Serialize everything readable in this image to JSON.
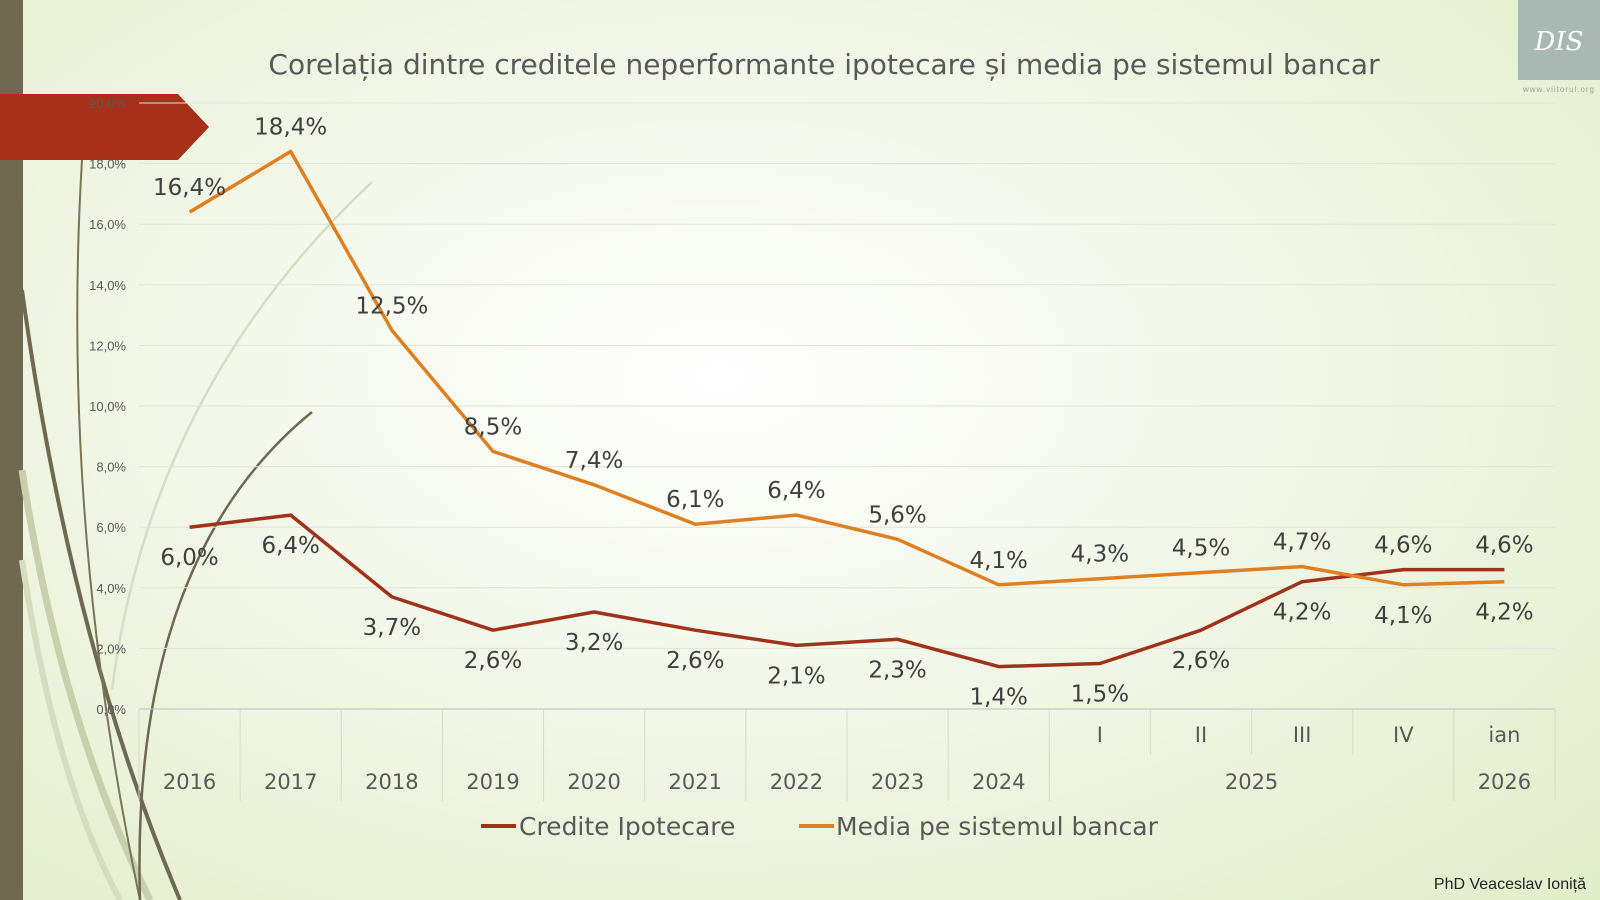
{
  "slide": {
    "credit": "PhD Veaceslav Ioniță",
    "logo": {
      "text": "DIS",
      "url": "www.viitorul.org"
    }
  },
  "colors": {
    "credite": "#a1321a",
    "media": "#e07f20",
    "sidebar": "#6e6950",
    "arrow": "#a6301a"
  },
  "chart_data": {
    "type": "line",
    "title": "Corelația dintre creditele neperformante ipotecare și media pe sistemul bancar",
    "categories": [
      "2016",
      "2017",
      "2018",
      "2019",
      "2020",
      "2021",
      "2022",
      "2023",
      "2024",
      "I",
      "II",
      "III",
      "IV",
      "ian"
    ],
    "category_groups": [
      {
        "label": "2016",
        "span": 1
      },
      {
        "label": "2017",
        "span": 1
      },
      {
        "label": "2018",
        "span": 1
      },
      {
        "label": "2019",
        "span": 1
      },
      {
        "label": "2020",
        "span": 1
      },
      {
        "label": "2021",
        "span": 1
      },
      {
        "label": "2022",
        "span": 1
      },
      {
        "label": "2023",
        "span": 1
      },
      {
        "label": "2024",
        "span": 1
      },
      {
        "label": "2025",
        "span": 4
      },
      {
        "label": "2026",
        "span": 1
      }
    ],
    "series": [
      {
        "name": "Credite Ipotecare",
        "values": [
          6.0,
          6.4,
          3.7,
          2.6,
          3.2,
          2.6,
          2.1,
          2.3,
          1.4,
          1.5,
          2.6,
          4.2,
          4.6,
          4.6
        ],
        "labels": [
          "6,0%",
          "6,4%",
          "3,7%",
          "2,6%",
          "3,2%",
          "2,6%",
          "2,1%",
          "2,3%",
          "1,4%",
          "1,5%",
          "2,6%",
          "4,2%",
          "4,6%",
          "4,6%"
        ]
      },
      {
        "name": "Media pe sistemul bancar",
        "values": [
          16.4,
          18.4,
          12.5,
          8.5,
          7.4,
          6.1,
          6.4,
          5.6,
          4.1,
          4.3,
          4.5,
          4.7,
          4.1,
          4.2
        ],
        "labels": [
          "16,4%",
          "18,4%",
          "12,5%",
          "8,5%",
          "7,4%",
          "6,1%",
          "6,4%",
          "5,6%",
          "4,1%",
          "4,3%",
          "4,5%",
          "4,7%",
          "4,1%",
          "4,2%"
        ]
      }
    ],
    "yticks": [
      0,
      2,
      4,
      6,
      8,
      10,
      12,
      14,
      16,
      18,
      20
    ],
    "ytick_labels": [
      "0,0%",
      "2,0%",
      "4,0%",
      "6,0%",
      "8,0%",
      "10,0%",
      "12,0%",
      "14,0%",
      "16,0%",
      "18,0%",
      "20,0%"
    ],
    "ylim": [
      0,
      20
    ],
    "grid": true,
    "legend_position": "bottom"
  }
}
